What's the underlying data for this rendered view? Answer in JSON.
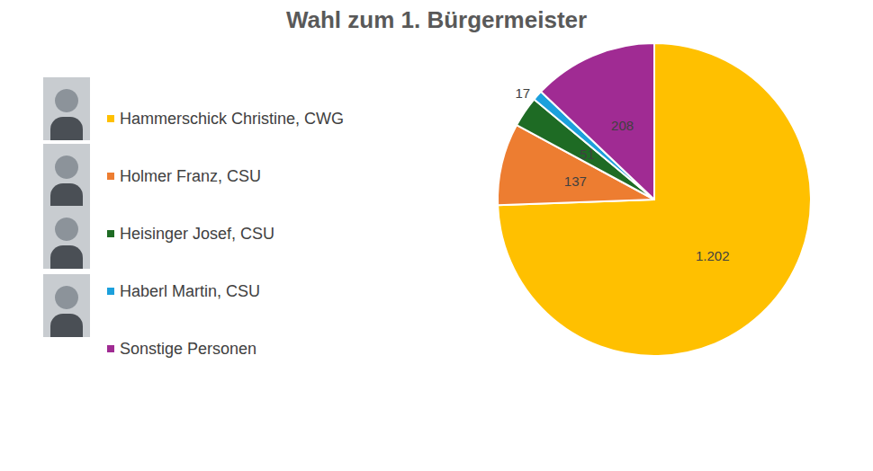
{
  "chart_data": {
    "type": "pie",
    "title": "Wahl zum 1. Bürgermeister",
    "categories": [
      "Hammerschick Christine, CWG",
      "Holmer Franz, CSU",
      "Heisinger Josef, CSU",
      "Haberl Martin, CSU",
      "Sonstige Personen"
    ],
    "values": [
      1202,
      137,
      51,
      17,
      208
    ],
    "value_labels": [
      "1.202",
      "137",
      "51",
      "17",
      "208"
    ],
    "colors": [
      "#ffc000",
      "#ed7d31",
      "#1e6b24",
      "#1ca0dc",
      "#a02b93"
    ],
    "data_labels": true,
    "legend": "left"
  }
}
